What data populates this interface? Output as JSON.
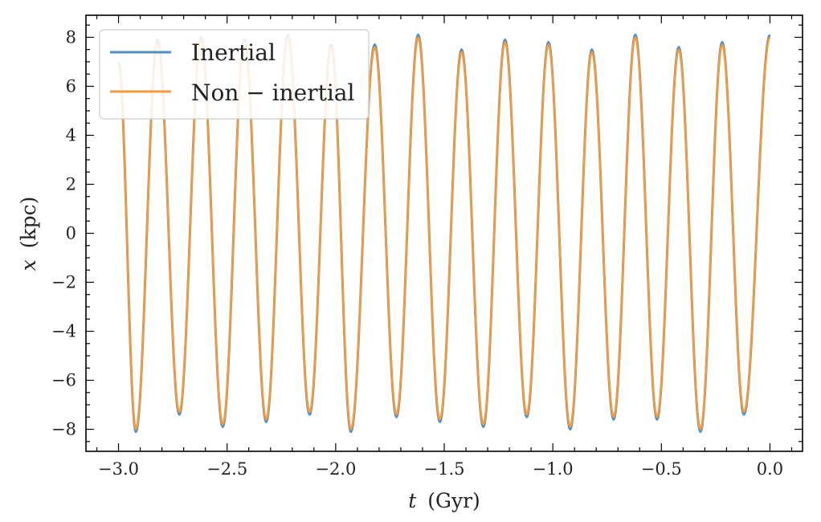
{
  "chart_data": {
    "type": "line",
    "xlabel_var": "t",
    "xlabel_unit": "(Gyr)",
    "ylabel_var": "x",
    "ylabel_unit": "(kpc)",
    "xlim": [
      -3.15,
      0.15
    ],
    "ylim": [
      -8.9,
      8.9
    ],
    "x_ticks": [
      -3.0,
      -2.5,
      -2.0,
      -1.5,
      -1.0,
      -0.5,
      0.0
    ],
    "x_tick_labels": [
      "−3.0",
      "−2.5",
      "−2.0",
      "−1.5",
      "−1.0",
      "−0.5",
      "0.0"
    ],
    "y_ticks": [
      -8,
      -6,
      -4,
      -2,
      0,
      2,
      4,
      6,
      8
    ],
    "y_tick_labels": [
      "−8",
      "−6",
      "−4",
      "−2",
      "0",
      "2",
      "4",
      "6",
      "8"
    ],
    "legend_position": "top-left",
    "colors": {
      "inertial": "#4f8fc6",
      "non_inertial": "#f39a3c"
    },
    "series": [
      {
        "name": "Inertial",
        "x": [
          -3.0,
          -2.92,
          -2.82,
          -2.72,
          -2.62,
          -2.52,
          -2.42,
          -2.32,
          -2.22,
          -2.12,
          -2.02,
          -1.93,
          -1.82,
          -1.72,
          -1.62,
          -1.52,
          -1.42,
          -1.32,
          -1.22,
          -1.12,
          -1.02,
          -0.92,
          -0.82,
          -0.72,
          -0.62,
          -0.52,
          -0.42,
          -0.32,
          -0.22,
          -0.12,
          0.0
        ],
        "y": [
          7.0,
          -8.1,
          7.9,
          -7.4,
          8.0,
          -7.9,
          7.9,
          -7.7,
          8.1,
          -7.4,
          7.7,
          -8.1,
          7.7,
          -7.5,
          8.1,
          -7.7,
          7.5,
          -7.9,
          7.9,
          -7.5,
          7.8,
          -8.0,
          7.5,
          -7.6,
          8.1,
          -7.6,
          7.6,
          -8.1,
          7.8,
          -7.4,
          8.1
        ]
      },
      {
        "name": "Non − inertial",
        "x": [
          -3.0,
          -2.92,
          -2.82,
          -2.72,
          -2.62,
          -2.52,
          -2.42,
          -2.32,
          -2.22,
          -2.12,
          -2.02,
          -1.93,
          -1.82,
          -1.72,
          -1.62,
          -1.52,
          -1.42,
          -1.32,
          -1.22,
          -1.12,
          -1.02,
          -0.92,
          -0.82,
          -0.72,
          -0.62,
          -0.52,
          -0.42,
          -0.32,
          -0.22,
          -0.12,
          0.0
        ],
        "y": [
          6.9,
          -8.0,
          7.8,
          -7.3,
          7.9,
          -7.8,
          7.8,
          -7.6,
          8.0,
          -7.3,
          7.6,
          -8.0,
          7.6,
          -7.4,
          8.0,
          -7.6,
          7.4,
          -7.8,
          7.8,
          -7.4,
          7.7,
          -7.9,
          7.4,
          -7.5,
          8.0,
          -7.5,
          7.5,
          -8.0,
          7.7,
          -7.3,
          8.0
        ]
      }
    ]
  }
}
